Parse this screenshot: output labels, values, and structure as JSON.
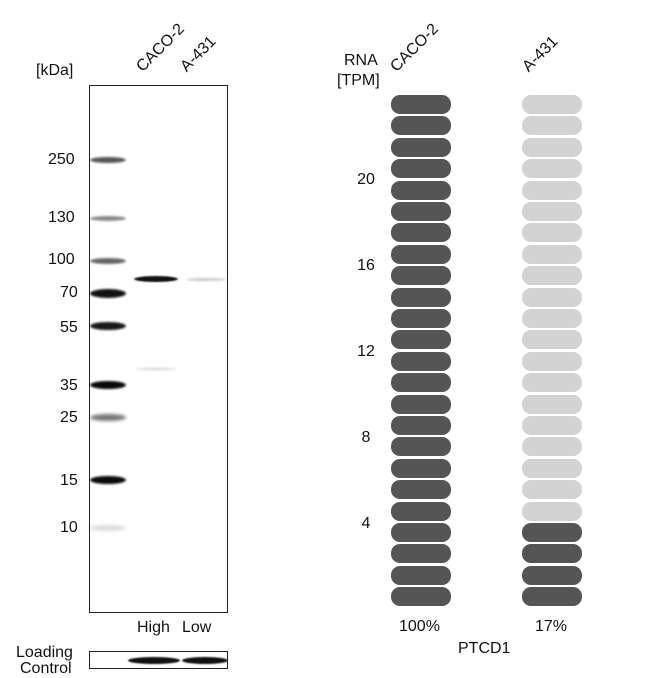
{
  "western_blot": {
    "unit_label": "[kDa]",
    "lanes": [
      "CACO-2",
      "A-431"
    ],
    "markers": [
      "250",
      "130",
      "100",
      "70",
      "55",
      "35",
      "25",
      "15",
      "10"
    ],
    "lane_levels": [
      "High",
      "Low"
    ],
    "loading_control_label": [
      "Loading",
      "Control"
    ]
  },
  "rna": {
    "header": [
      "RNA",
      "[TPM]"
    ],
    "cell_lines": [
      "CACO-2",
      "A-431"
    ],
    "scale_labels": [
      "20",
      "16",
      "12",
      "8",
      "4"
    ],
    "percentages": [
      "100%",
      "17%"
    ],
    "gene": "PTCD1",
    "segments_total": 24,
    "filled_segments": [
      24,
      4
    ],
    "colors": {
      "filled": "#555555",
      "empty": "#d3d3d3"
    }
  }
}
